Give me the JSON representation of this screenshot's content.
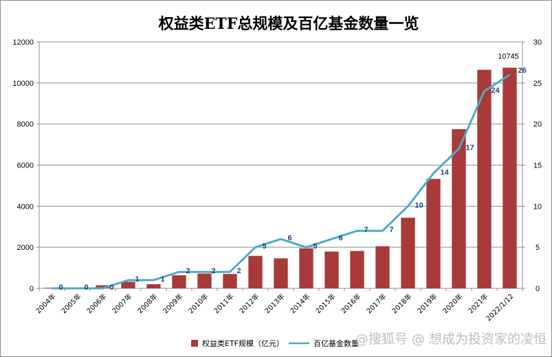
{
  "chart_data": {
    "type": "bar",
    "title": "权益类ETF总规模及百亿基金数量一览",
    "categories": [
      "2004年",
      "2005年",
      "2006年",
      "2007年",
      "2008年",
      "2009年",
      "2010年",
      "2011年",
      "2012年",
      "2013年",
      "2014年",
      "2015年",
      "2016年",
      "2017年",
      "2018年",
      "2019年",
      "2020年",
      "2021年",
      "2022/1/12"
    ],
    "series": [
      {
        "name": "权益类ETF规模（亿元）",
        "type": "bar",
        "axis": "left",
        "color": "#a83a3a",
        "values": [
          30,
          20,
          150,
          320,
          200,
          640,
          720,
          700,
          1580,
          1460,
          1950,
          1790,
          1820,
          2050,
          3440,
          5330,
          7750,
          10640,
          10745
        ]
      },
      {
        "name": "百亿基金数量",
        "type": "line",
        "axis": "right",
        "color": "#4bacc6",
        "values": [
          0,
          0,
          0,
          1,
          1,
          2,
          2,
          2,
          5,
          6,
          5,
          6,
          7,
          7,
          10,
          14,
          17,
          24,
          26
        ]
      }
    ],
    "y_left": {
      "min": 0,
      "max": 12000,
      "ticks": [
        "0",
        "2000",
        "4000",
        "6000",
        "8000",
        "10000",
        "12000"
      ]
    },
    "y_right": {
      "min": 0,
      "max": 30,
      "ticks": [
        "0",
        "5",
        "10",
        "15",
        "20",
        "25",
        "30"
      ]
    },
    "bar_top_label": "10745",
    "grid": true,
    "legend_position": "bottom"
  },
  "watermark": "@搜狐号 @ 想成为投资家的凌恒"
}
